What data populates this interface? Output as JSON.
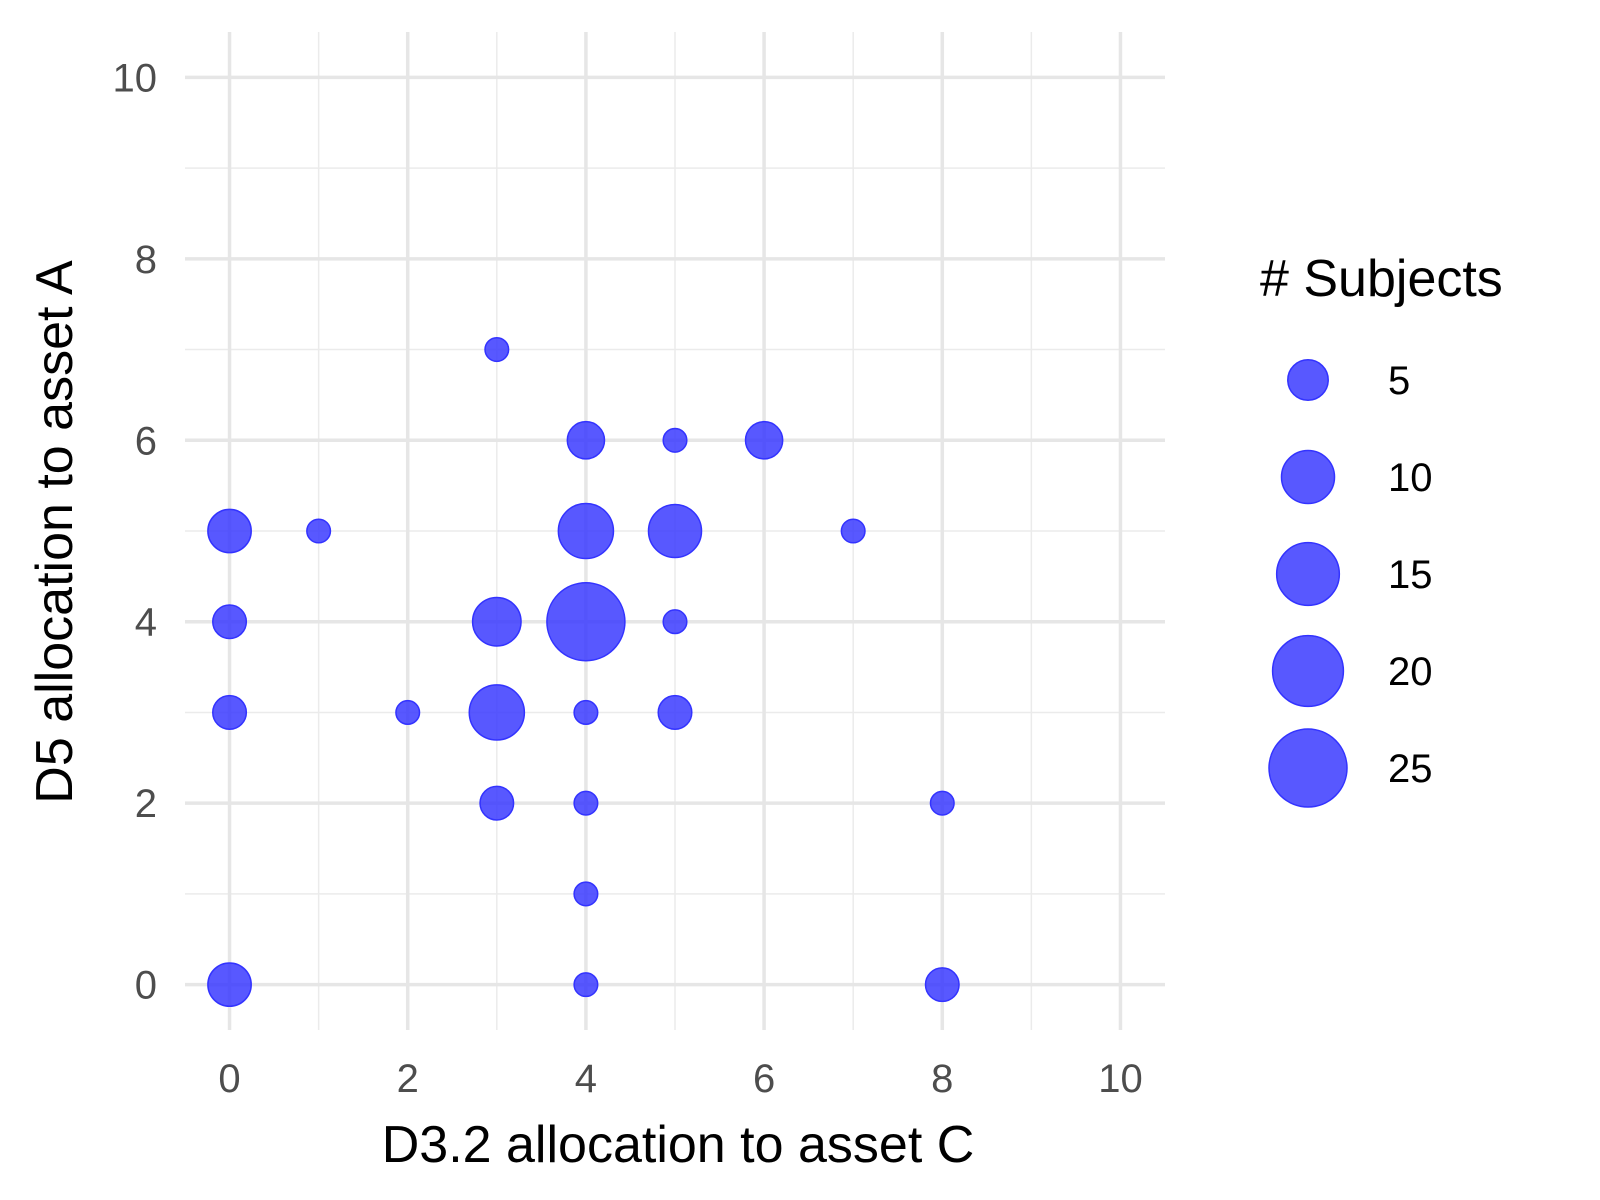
{
  "chart_data": {
    "type": "scatter",
    "title": "",
    "xlabel": "D3.2 allocation to asset C",
    "ylabel": "D5 allocation to asset A",
    "xlim": [
      -0.5,
      10.5
    ],
    "ylim": [
      -0.5,
      10.5
    ],
    "x_ticks": [
      0,
      2,
      4,
      6,
      8,
      10
    ],
    "y_ticks": [
      0,
      2,
      4,
      6,
      8,
      10
    ],
    "grid": true,
    "point_color": "#3333ff",
    "size_legend": {
      "title": "# Subjects",
      "placement": "right",
      "values": [
        5,
        10,
        15,
        20,
        25
      ],
      "labels": [
        "5",
        "10",
        "15",
        "20",
        "25"
      ]
    },
    "points": [
      {
        "x": 3,
        "y": 7,
        "n": 1
      },
      {
        "x": 4,
        "y": 6,
        "n": 4
      },
      {
        "x": 5,
        "y": 6,
        "n": 1
      },
      {
        "x": 6,
        "y": 6,
        "n": 4
      },
      {
        "x": 0,
        "y": 5,
        "n": 6
      },
      {
        "x": 1,
        "y": 5,
        "n": 1
      },
      {
        "x": 4,
        "y": 5,
        "n": 11
      },
      {
        "x": 5,
        "y": 5,
        "n": 10
      },
      {
        "x": 7,
        "y": 5,
        "n": 1
      },
      {
        "x": 0,
        "y": 4,
        "n": 3
      },
      {
        "x": 3,
        "y": 4,
        "n": 8
      },
      {
        "x": 4,
        "y": 4,
        "n": 25
      },
      {
        "x": 5,
        "y": 4,
        "n": 1
      },
      {
        "x": 0,
        "y": 3,
        "n": 3
      },
      {
        "x": 2,
        "y": 3,
        "n": 1
      },
      {
        "x": 3,
        "y": 3,
        "n": 11
      },
      {
        "x": 4,
        "y": 3,
        "n": 1
      },
      {
        "x": 5,
        "y": 3,
        "n": 3
      },
      {
        "x": 3,
        "y": 2,
        "n": 3
      },
      {
        "x": 4,
        "y": 2,
        "n": 1
      },
      {
        "x": 8,
        "y": 2,
        "n": 1
      },
      {
        "x": 4,
        "y": 1,
        "n": 1
      },
      {
        "x": 0,
        "y": 0,
        "n": 6
      },
      {
        "x": 4,
        "y": 0,
        "n": 1
      },
      {
        "x": 8,
        "y": 0,
        "n": 3
      }
    ]
  }
}
